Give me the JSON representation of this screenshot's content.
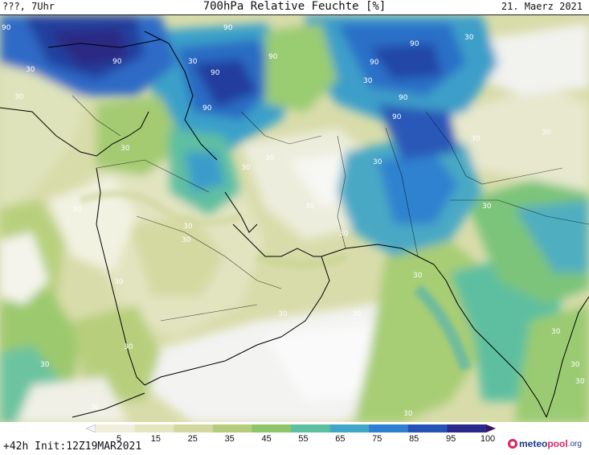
{
  "header": {
    "valid_time": "???, 7Uhr",
    "title": "700hPa Relative Feuchte [%]",
    "date": "21. Maerz 2021"
  },
  "map": {
    "contour_labels": [
      "90",
      "90",
      "90",
      "90",
      "90",
      "90",
      "90",
      "90",
      "90",
      "90",
      "30",
      "30",
      "30",
      "30",
      "30",
      "30",
      "30",
      "30",
      "30",
      "30",
      "30",
      "30",
      "30",
      "30",
      "30",
      "30",
      "30",
      "30",
      "30",
      "30",
      "30",
      "30",
      "30",
      "30",
      "30",
      "30",
      "30",
      "30"
    ]
  },
  "colorbar": {
    "ticks": [
      "5",
      "15",
      "25",
      "35",
      "45",
      "55",
      "65",
      "75",
      "85",
      "95",
      "100"
    ],
    "colors": [
      "#f4f4f4",
      "#efefdc",
      "#e4e6bf",
      "#d2d8a0",
      "#b4cc7c",
      "#8ec56a",
      "#5cbfa0",
      "#3fa6c8",
      "#2f7fd0",
      "#2552b6",
      "#2a2a8c",
      "#3a1460"
    ]
  },
  "footer": {
    "run_info": "+42h Init:12Z19MAR2021",
    "logo_main": "meteo",
    "logo_accent": "pool",
    "logo_tld": ".org"
  }
}
